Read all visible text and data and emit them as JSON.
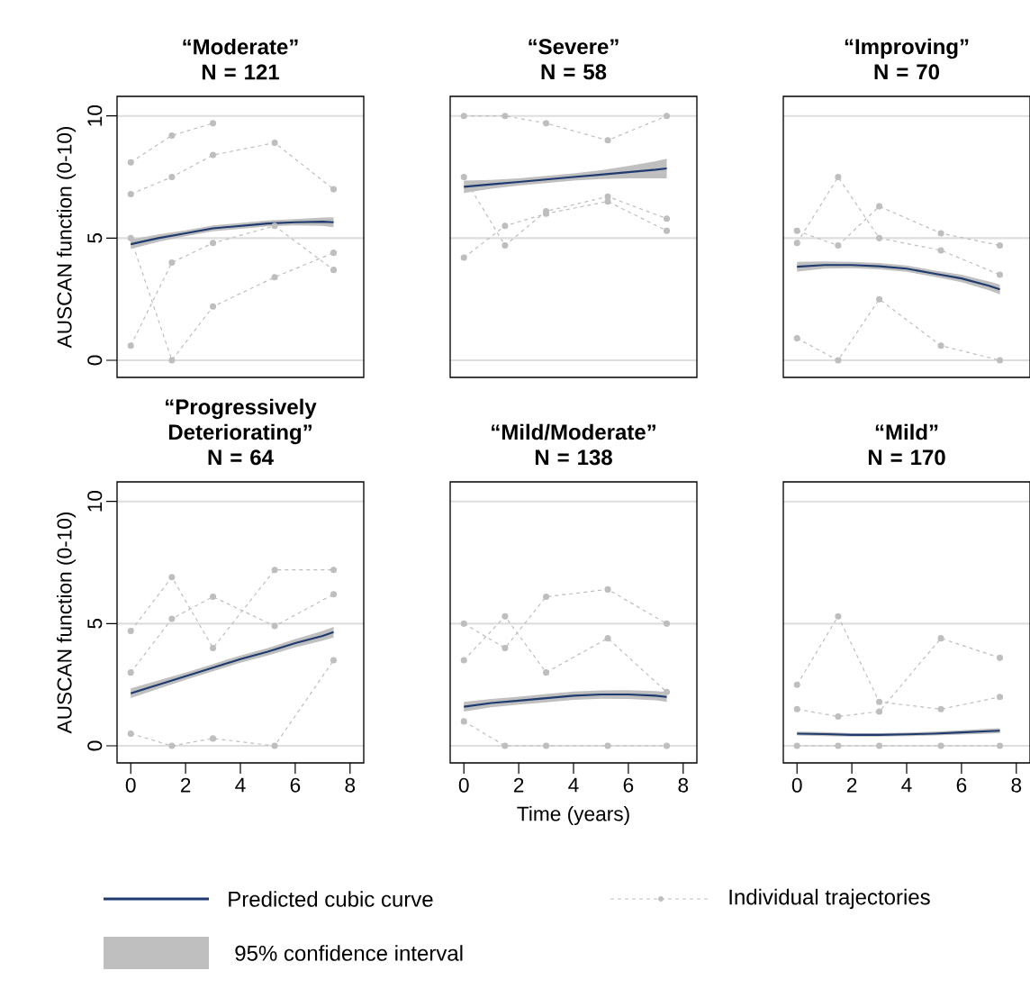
{
  "chart_data": [
    {
      "type": "line",
      "title": "“Moderate”",
      "subtitle": "N = 121",
      "ylabel": "AUSCAN function (0-10)",
      "xlim": [
        -0.5,
        8.5
      ],
      "ylim": [
        -0.7,
        10.8
      ],
      "xticks": [
        0,
        2,
        4,
        6,
        8
      ],
      "yticks": [
        0,
        5,
        10
      ],
      "grid": "y",
      "tick_labels": "y",
      "series": [
        {
          "color": "#1f3a6e",
          "line_style": "solid",
          "marker": "none",
          "x": [
            0,
            1,
            2,
            3,
            4,
            5,
            6,
            7,
            7.4
          ],
          "values": [
            4.75,
            5.0,
            5.2,
            5.4,
            5.5,
            5.6,
            5.65,
            5.67,
            5.65
          ],
          "lower": [
            4.55,
            4.85,
            5.08,
            5.28,
            5.38,
            5.48,
            5.52,
            5.5,
            5.45
          ],
          "upper": [
            4.95,
            5.15,
            5.32,
            5.52,
            5.62,
            5.72,
            5.78,
            5.84,
            5.85
          ]
        },
        {
          "color": "#bebebe",
          "line_style": "dashed",
          "marker": "circle",
          "x": [
            0,
            1.5,
            3
          ],
          "values": [
            8.1,
            9.2,
            9.7
          ]
        },
        {
          "color": "#bebebe",
          "line_style": "dashed",
          "marker": "circle",
          "x": [
            0,
            1.5,
            3,
            5.25,
            7.4
          ],
          "values": [
            6.8,
            7.5,
            8.4,
            8.9,
            7.0
          ]
        },
        {
          "color": "#bebebe",
          "line_style": "dashed",
          "marker": "circle",
          "x": [
            0,
            1.5,
            3,
            5.25,
            7.4
          ],
          "values": [
            5.0,
            0.0,
            2.2,
            3.4,
            4.4
          ]
        },
        {
          "color": "#bebebe",
          "line_style": "dashed",
          "marker": "circle",
          "x": [
            0,
            1.5,
            3,
            5.25,
            7.4
          ],
          "values": [
            0.6,
            4.0,
            4.8,
            5.5,
            3.7
          ]
        }
      ]
    },
    {
      "type": "line",
      "title": "“Severe”",
      "subtitle": "N = 58",
      "xlim": [
        -0.5,
        8.5
      ],
      "ylim": [
        -0.7,
        10.8
      ],
      "xticks": [
        0,
        2,
        4,
        6,
        8
      ],
      "yticks": [
        0,
        5,
        10
      ],
      "grid": "y",
      "tick_labels": false,
      "series": [
        {
          "color": "#1f3a6e",
          "line_style": "solid",
          "marker": "none",
          "x": [
            0,
            1,
            2,
            3,
            4,
            5,
            6,
            7,
            7.4
          ],
          "values": [
            7.1,
            7.2,
            7.3,
            7.4,
            7.5,
            7.6,
            7.7,
            7.8,
            7.85
          ],
          "lower": [
            6.85,
            7.02,
            7.15,
            7.25,
            7.35,
            7.42,
            7.45,
            7.45,
            7.45
          ],
          "upper": [
            7.35,
            7.38,
            7.45,
            7.55,
            7.65,
            7.78,
            7.95,
            8.15,
            8.25
          ]
        },
        {
          "color": "#bebebe",
          "line_style": "dashed",
          "marker": "circle",
          "x": [
            0,
            1.5,
            3,
            5.25,
            7.4
          ],
          "values": [
            10.0,
            10.0,
            9.7,
            9.0,
            10.0
          ]
        },
        {
          "color": "#bebebe",
          "line_style": "dashed",
          "marker": "circle",
          "x": [
            0,
            1.5,
            3,
            5.25,
            7.4
          ],
          "values": [
            4.2,
            5.5,
            6.0,
            6.5,
            5.3
          ]
        },
        {
          "color": "#bebebe",
          "line_style": "dashed",
          "marker": "circle",
          "x": [
            0,
            1.5,
            3,
            5.25,
            7.4
          ],
          "values": [
            7.5,
            4.7,
            6.1,
            6.7,
            5.8
          ]
        }
      ]
    },
    {
      "type": "line",
      "title": "“Improving”",
      "subtitle": "N = 70",
      "xlim": [
        -0.5,
        8.5
      ],
      "ylim": [
        -0.7,
        10.8
      ],
      "xticks": [
        0,
        2,
        4,
        6,
        8
      ],
      "yticks": [
        0,
        5,
        10
      ],
      "grid": "y",
      "tick_labels": false,
      "series": [
        {
          "color": "#1f3a6e",
          "line_style": "solid",
          "marker": "none",
          "x": [
            0,
            1,
            2,
            3,
            4,
            5,
            6,
            7,
            7.4
          ],
          "values": [
            3.83,
            3.9,
            3.9,
            3.85,
            3.75,
            3.55,
            3.35,
            3.05,
            2.9
          ],
          "lower": [
            3.63,
            3.75,
            3.77,
            3.72,
            3.62,
            3.42,
            3.2,
            2.87,
            2.7
          ],
          "upper": [
            4.03,
            4.05,
            4.03,
            3.98,
            3.88,
            3.68,
            3.5,
            3.23,
            3.1
          ]
        },
        {
          "color": "#bebebe",
          "line_style": "dashed",
          "marker": "circle",
          "x": [
            0,
            1.5,
            3,
            5.25,
            7.4
          ],
          "values": [
            4.8,
            7.5,
            5.0,
            4.5,
            3.5
          ]
        },
        {
          "color": "#bebebe",
          "line_style": "dashed",
          "marker": "circle",
          "x": [
            0,
            1.5,
            3,
            5.25,
            7.4
          ],
          "values": [
            0.9,
            0.0,
            2.5,
            0.6,
            0.0
          ]
        },
        {
          "color": "#bebebe",
          "line_style": "dashed",
          "marker": "circle",
          "x": [
            0,
            1.5,
            3,
            5.25,
            7.4
          ],
          "values": [
            5.3,
            4.7,
            6.3,
            5.2,
            4.7
          ]
        }
      ]
    },
    {
      "type": "line",
      "title": "“Progressively Deteriorating”",
      "subtitle": "N = 64",
      "ylabel": "AUSCAN function (0-10)",
      "xlim": [
        -0.5,
        8.5
      ],
      "ylim": [
        -0.7,
        10.8
      ],
      "xticks": [
        0,
        2,
        4,
        6,
        8
      ],
      "yticks": [
        0,
        5,
        10
      ],
      "grid": "y",
      "series": [
        {
          "color": "#1f3a6e",
          "line_style": "solid",
          "marker": "none",
          "x": [
            0,
            1,
            2,
            3,
            4,
            5,
            6,
            7,
            7.4
          ],
          "values": [
            2.15,
            2.5,
            2.85,
            3.2,
            3.55,
            3.85,
            4.2,
            4.5,
            4.65
          ],
          "lower": [
            1.95,
            2.33,
            2.7,
            3.05,
            3.4,
            3.7,
            4.03,
            4.3,
            4.43
          ],
          "upper": [
            2.35,
            2.67,
            3.0,
            3.35,
            3.7,
            4.0,
            4.37,
            4.7,
            4.87
          ]
        },
        {
          "color": "#bebebe",
          "line_style": "dashed",
          "marker": "circle",
          "x": [
            0,
            1.5,
            3,
            5.25,
            7.4
          ],
          "values": [
            4.7,
            6.9,
            4.0,
            7.2,
            7.2
          ]
        },
        {
          "color": "#bebebe",
          "line_style": "dashed",
          "marker": "circle",
          "x": [
            0,
            1.5,
            3,
            5.25,
            7.4
          ],
          "values": [
            0.5,
            0.0,
            0.3,
            0.0,
            3.5
          ]
        },
        {
          "color": "#bebebe",
          "line_style": "dashed",
          "marker": "circle",
          "x": [
            0,
            1.5,
            3,
            5.25,
            7.4
          ],
          "values": [
            3.0,
            5.2,
            6.1,
            4.9,
            6.2
          ]
        }
      ]
    },
    {
      "type": "line",
      "title": "“Mild/Moderate”",
      "subtitle": "N = 138",
      "xlabel": "Time (years)",
      "xlim": [
        -0.5,
        8.5
      ],
      "ylim": [
        -0.7,
        10.8
      ],
      "xticks": [
        0,
        2,
        4,
        6,
        8
      ],
      "yticks": [
        0,
        5,
        10
      ],
      "grid": "y",
      "tick_labels": "x",
      "legend": "bottom",
      "annotations": [
        "95% confidence interval"
      ],
      "series": [
        {
          "name": "Predicted cubic curve",
          "color": "#1f3a6e",
          "line_style": "solid",
          "marker": "none",
          "x": [
            0,
            1,
            2,
            3,
            4,
            5,
            6,
            7,
            7.4
          ],
          "values": [
            1.6,
            1.75,
            1.85,
            1.95,
            2.05,
            2.1,
            2.1,
            2.05,
            2.0
          ],
          "lower": [
            1.4,
            1.58,
            1.69,
            1.78,
            1.88,
            1.93,
            1.92,
            1.86,
            1.8
          ],
          "upper": [
            1.8,
            1.92,
            2.01,
            2.12,
            2.22,
            2.27,
            2.28,
            2.24,
            2.2
          ]
        },
        {
          "name": "Individual trajectories",
          "color": "#bebebe",
          "line_style": "dashed",
          "marker": "circle",
          "x": [
            0,
            1.5,
            3,
            5.25,
            7.4
          ],
          "values": [
            5.0,
            4.0,
            6.1,
            6.4,
            5.0
          ]
        },
        {
          "color": "#bebebe",
          "line_style": "dashed",
          "marker": "circle",
          "x": [
            0,
            1.5,
            3,
            5.25,
            7.4
          ],
          "values": [
            1.0,
            0.0,
            0.0,
            0.0,
            0.0
          ]
        },
        {
          "color": "#bebebe",
          "line_style": "dashed",
          "marker": "circle",
          "x": [
            0,
            1.5,
            3,
            5.25,
            7.4
          ],
          "values": [
            3.5,
            5.3,
            3.0,
            4.4,
            2.2
          ]
        }
      ]
    },
    {
      "type": "line",
      "title": "“Mild”",
      "subtitle": "N = 170",
      "xlim": [
        -0.5,
        8.5
      ],
      "ylim": [
        -0.7,
        10.8
      ],
      "xticks": [
        0,
        2,
        4,
        6,
        8
      ],
      "yticks": [
        0,
        5,
        10
      ],
      "grid": "y",
      "tick_labels": "x",
      "series": [
        {
          "color": "#1f3a6e",
          "line_style": "solid",
          "marker": "none",
          "x": [
            0,
            1,
            2,
            3,
            4,
            5,
            6,
            7,
            7.4
          ],
          "values": [
            0.5,
            0.48,
            0.45,
            0.45,
            0.47,
            0.5,
            0.55,
            0.6,
            0.62
          ],
          "lower": [
            0.42,
            0.4,
            0.38,
            0.38,
            0.4,
            0.42,
            0.46,
            0.5,
            0.52
          ],
          "upper": [
            0.58,
            0.56,
            0.52,
            0.52,
            0.54,
            0.58,
            0.64,
            0.7,
            0.72
          ]
        },
        {
          "color": "#bebebe",
          "line_style": "dashed",
          "marker": "circle",
          "x": [
            0,
            1.5,
            3,
            5.25,
            7.4
          ],
          "values": [
            2.5,
            5.3,
            1.8,
            1.5,
            2.0
          ]
        },
        {
          "color": "#bebebe",
          "line_style": "dashed",
          "marker": "circle",
          "x": [
            0,
            1.5,
            3,
            5.25,
            7.4
          ],
          "values": [
            1.5,
            1.2,
            1.4,
            4.4,
            3.6
          ]
        },
        {
          "color": "#bebebe",
          "line_style": "dashed",
          "marker": "circle",
          "x": [
            0,
            1.5,
            3,
            5.25,
            7.4
          ],
          "values": [
            0.0,
            0.0,
            0.0,
            0.0,
            0.0
          ]
        }
      ]
    }
  ]
}
